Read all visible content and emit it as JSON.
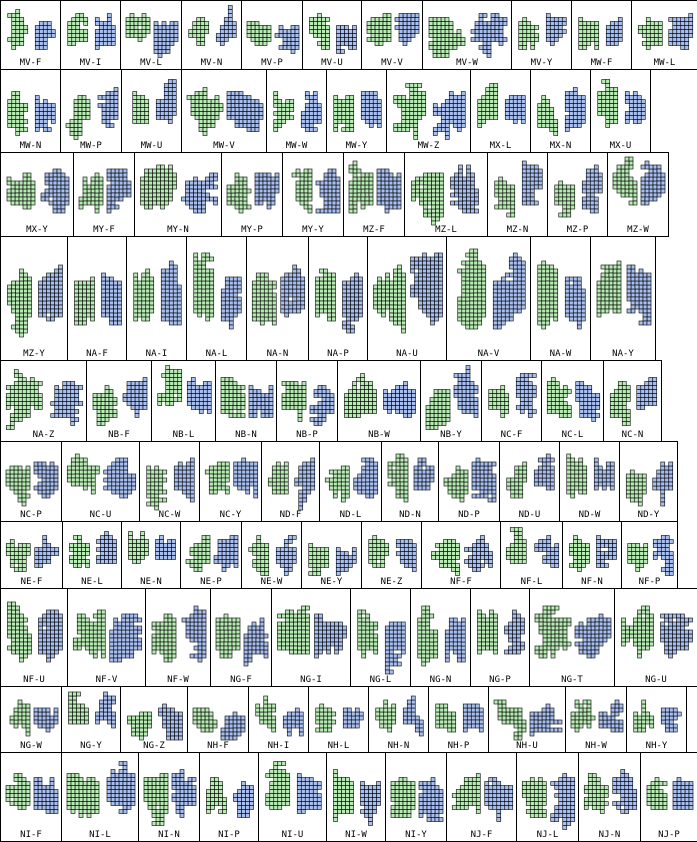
{
  "rows": [
    [
      "MV-F",
      "MV-I",
      "MV-L",
      "MV-N",
      "MV-P",
      "MV-U",
      "MV-V",
      "MV-W",
      "MV-Y",
      "MW-F",
      "MW-L"
    ],
    [
      "MW-N",
      "MW-P",
      "MW-U",
      "MW-V",
      "MW-W",
      "MW-Y",
      "MW-Z",
      "MX-L",
      "MX-N",
      "MX-U"
    ],
    [
      "MX-Y",
      "MY-F",
      "MY-N",
      "MY-P",
      "MY-Y",
      "MZ-F",
      "MZ-L",
      "MZ-N",
      "MZ-P",
      "MZ-W"
    ],
    [
      "MZ-Y",
      "NA-F",
      "NA-I",
      "NA-L",
      "NA-N",
      "NA-P",
      "NA-U",
      "NA-V",
      "NA-W",
      "NA-Y"
    ],
    [
      "NA-Z",
      "NB-F",
      "NB-L",
      "NB-N",
      "NB-P",
      "NB-W",
      "NB-Y",
      "NC-F",
      "NC-L",
      "NC-N"
    ],
    [
      "NC-P",
      "NC-U",
      "NC-W",
      "NC-Y",
      "ND-F",
      "ND-L",
      "ND-N",
      "ND-P",
      "ND-U",
      "ND-W",
      "ND-Y"
    ],
    [
      "NE-F",
      "NE-L",
      "NE-N",
      "NE-P",
      "NE-W",
      "NE-Y",
      "NE-Z",
      "NF-F",
      "NF-L",
      "NF-N",
      "NF-P"
    ],
    [
      "NF-U",
      "NF-V",
      "NF-W",
      "NG-F",
      "NG-I",
      "NG-L",
      "NG-N",
      "NG-P",
      "NG-T",
      "NG-U"
    ],
    [
      "NG-W",
      "NG-Y",
      "NG-Z",
      "NH-F",
      "NH-I",
      "NH-L",
      "NH-N",
      "NH-P",
      "NH-U",
      "NH-W",
      "NH-Y"
    ],
    [
      "NI-F",
      "NI-L",
      "NI-N",
      "NI-P",
      "NI-U",
      "NI-W",
      "NI-Y",
      "NJ-F",
      "NJ-L",
      "NJ-N",
      "NJ-P"
    ]
  ],
  "colors": {
    "left_shape": "#b8ecb4",
    "right_shape": "#a8bff0",
    "stroke": "#000000"
  }
}
